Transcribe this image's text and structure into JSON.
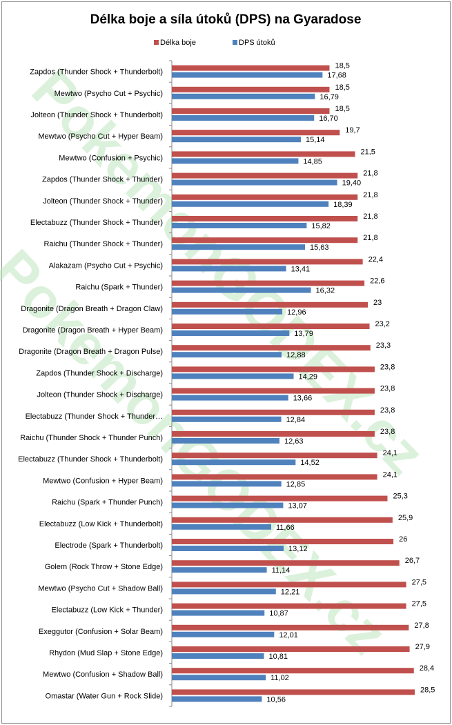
{
  "watermark": "PokemonGODEX.cz",
  "chart_data": {
    "type": "bar",
    "orientation": "horizontal",
    "title": "Délka boje a síla útoků (DPS) na Gyaradose",
    "legend_position": "top",
    "grid": false,
    "series": [
      {
        "name": "Délka boje",
        "color": "#c0504d",
        "values": [
          18.5,
          18.5,
          18.5,
          19.7,
          21.5,
          21.8,
          21.8,
          21.8,
          21.8,
          22.4,
          22.6,
          23,
          23.2,
          23.3,
          23.8,
          23.8,
          23.8,
          23.8,
          24.1,
          24.1,
          25.3,
          25.9,
          26,
          26.7,
          27.5,
          27.5,
          27.8,
          27.9,
          28.4,
          28.5
        ],
        "labels": [
          "18,5",
          "18,5",
          "18,5",
          "19,7",
          "21,5",
          "21,8",
          "21,8",
          "21,8",
          "21,8",
          "22,4",
          "22,6",
          "23",
          "23,2",
          "23,3",
          "23,8",
          "23,8",
          "23,8",
          "23,8",
          "24,1",
          "24,1",
          "25,3",
          "25,9",
          "26",
          "26,7",
          "27,5",
          "27,5",
          "27,8",
          "27,9",
          "28,4",
          "28,5"
        ]
      },
      {
        "name": "DPS útoků",
        "color": "#4f81bd",
        "values": [
          17.68,
          16.79,
          16.7,
          15.14,
          14.85,
          19.4,
          18.39,
          15.82,
          15.63,
          13.41,
          16.32,
          12.96,
          13.79,
          12.88,
          14.29,
          13.66,
          12.84,
          12.63,
          14.52,
          12.85,
          13.07,
          11.66,
          13.12,
          11.14,
          12.21,
          10.87,
          12.01,
          10.81,
          11.02,
          10.56
        ],
        "labels": [
          "17,68",
          "16,79",
          "16,70",
          "15,14",
          "14,85",
          "19,40",
          "18,39",
          "15,82",
          "15,63",
          "13,41",
          "16,32",
          "12,96",
          "13,79",
          "12,88",
          "14,29",
          "13,66",
          "12,84",
          "12,63",
          "14,52",
          "12,85",
          "13,07",
          "11,66",
          "13,12",
          "11,14",
          "12,21",
          "10,87",
          "12,01",
          "10,81",
          "11,02",
          "10,56"
        ]
      }
    ],
    "categories": [
      "Zapdos (Thunder Shock + Thunderbolt)",
      "Mewtwo (Psycho Cut + Psychic)",
      "Jolteon (Thunder Shock + Thunderbolt)",
      "Mewtwo (Psycho Cut + Hyper Beam)",
      "Mewtwo (Confusion + Psychic)",
      "Zapdos (Thunder Shock + Thunder)",
      "Jolteon (Thunder Shock + Thunder)",
      "Electabuzz (Thunder Shock + Thunder)",
      "Raichu (Thunder Shock + Thunder)",
      "Alakazam (Psycho Cut + Psychic)",
      "Raichu (Spark + Thunder)",
      "Dragonite (Dragon Breath + Dragon Claw)",
      "Dragonite (Dragon Breath + Hyper Beam)",
      "Dragonite (Dragon Breath + Dragon Pulse)",
      "Zapdos (Thunder Shock + Discharge)",
      "Jolteon (Thunder Shock + Discharge)",
      "Electabuzz (Thunder Shock + Thunder…",
      "Raichu (Thunder Shock + Thunder Punch)",
      "Electabuzz (Thunder Shock + Thunderbolt)",
      "Mewtwo (Confusion + Hyper Beam)",
      "Raichu (Spark + Thunder Punch)",
      "Electabuzz (Low Kick + Thunderbolt)",
      "Electrode (Spark + Thunderbolt)",
      "Golem (Rock Throw + Stone Edge)",
      "Mewtwo (Psycho Cut + Shadow Ball)",
      "Electabuzz (Low Kick + Thunder)",
      "Exeggutor (Confusion + Solar Beam)",
      "Rhydon (Mud Slap + Stone Edge)",
      "Mewtwo (Confusion + Shadow Ball)",
      "Omastar (Water Gun + Rock Slide)"
    ]
  }
}
